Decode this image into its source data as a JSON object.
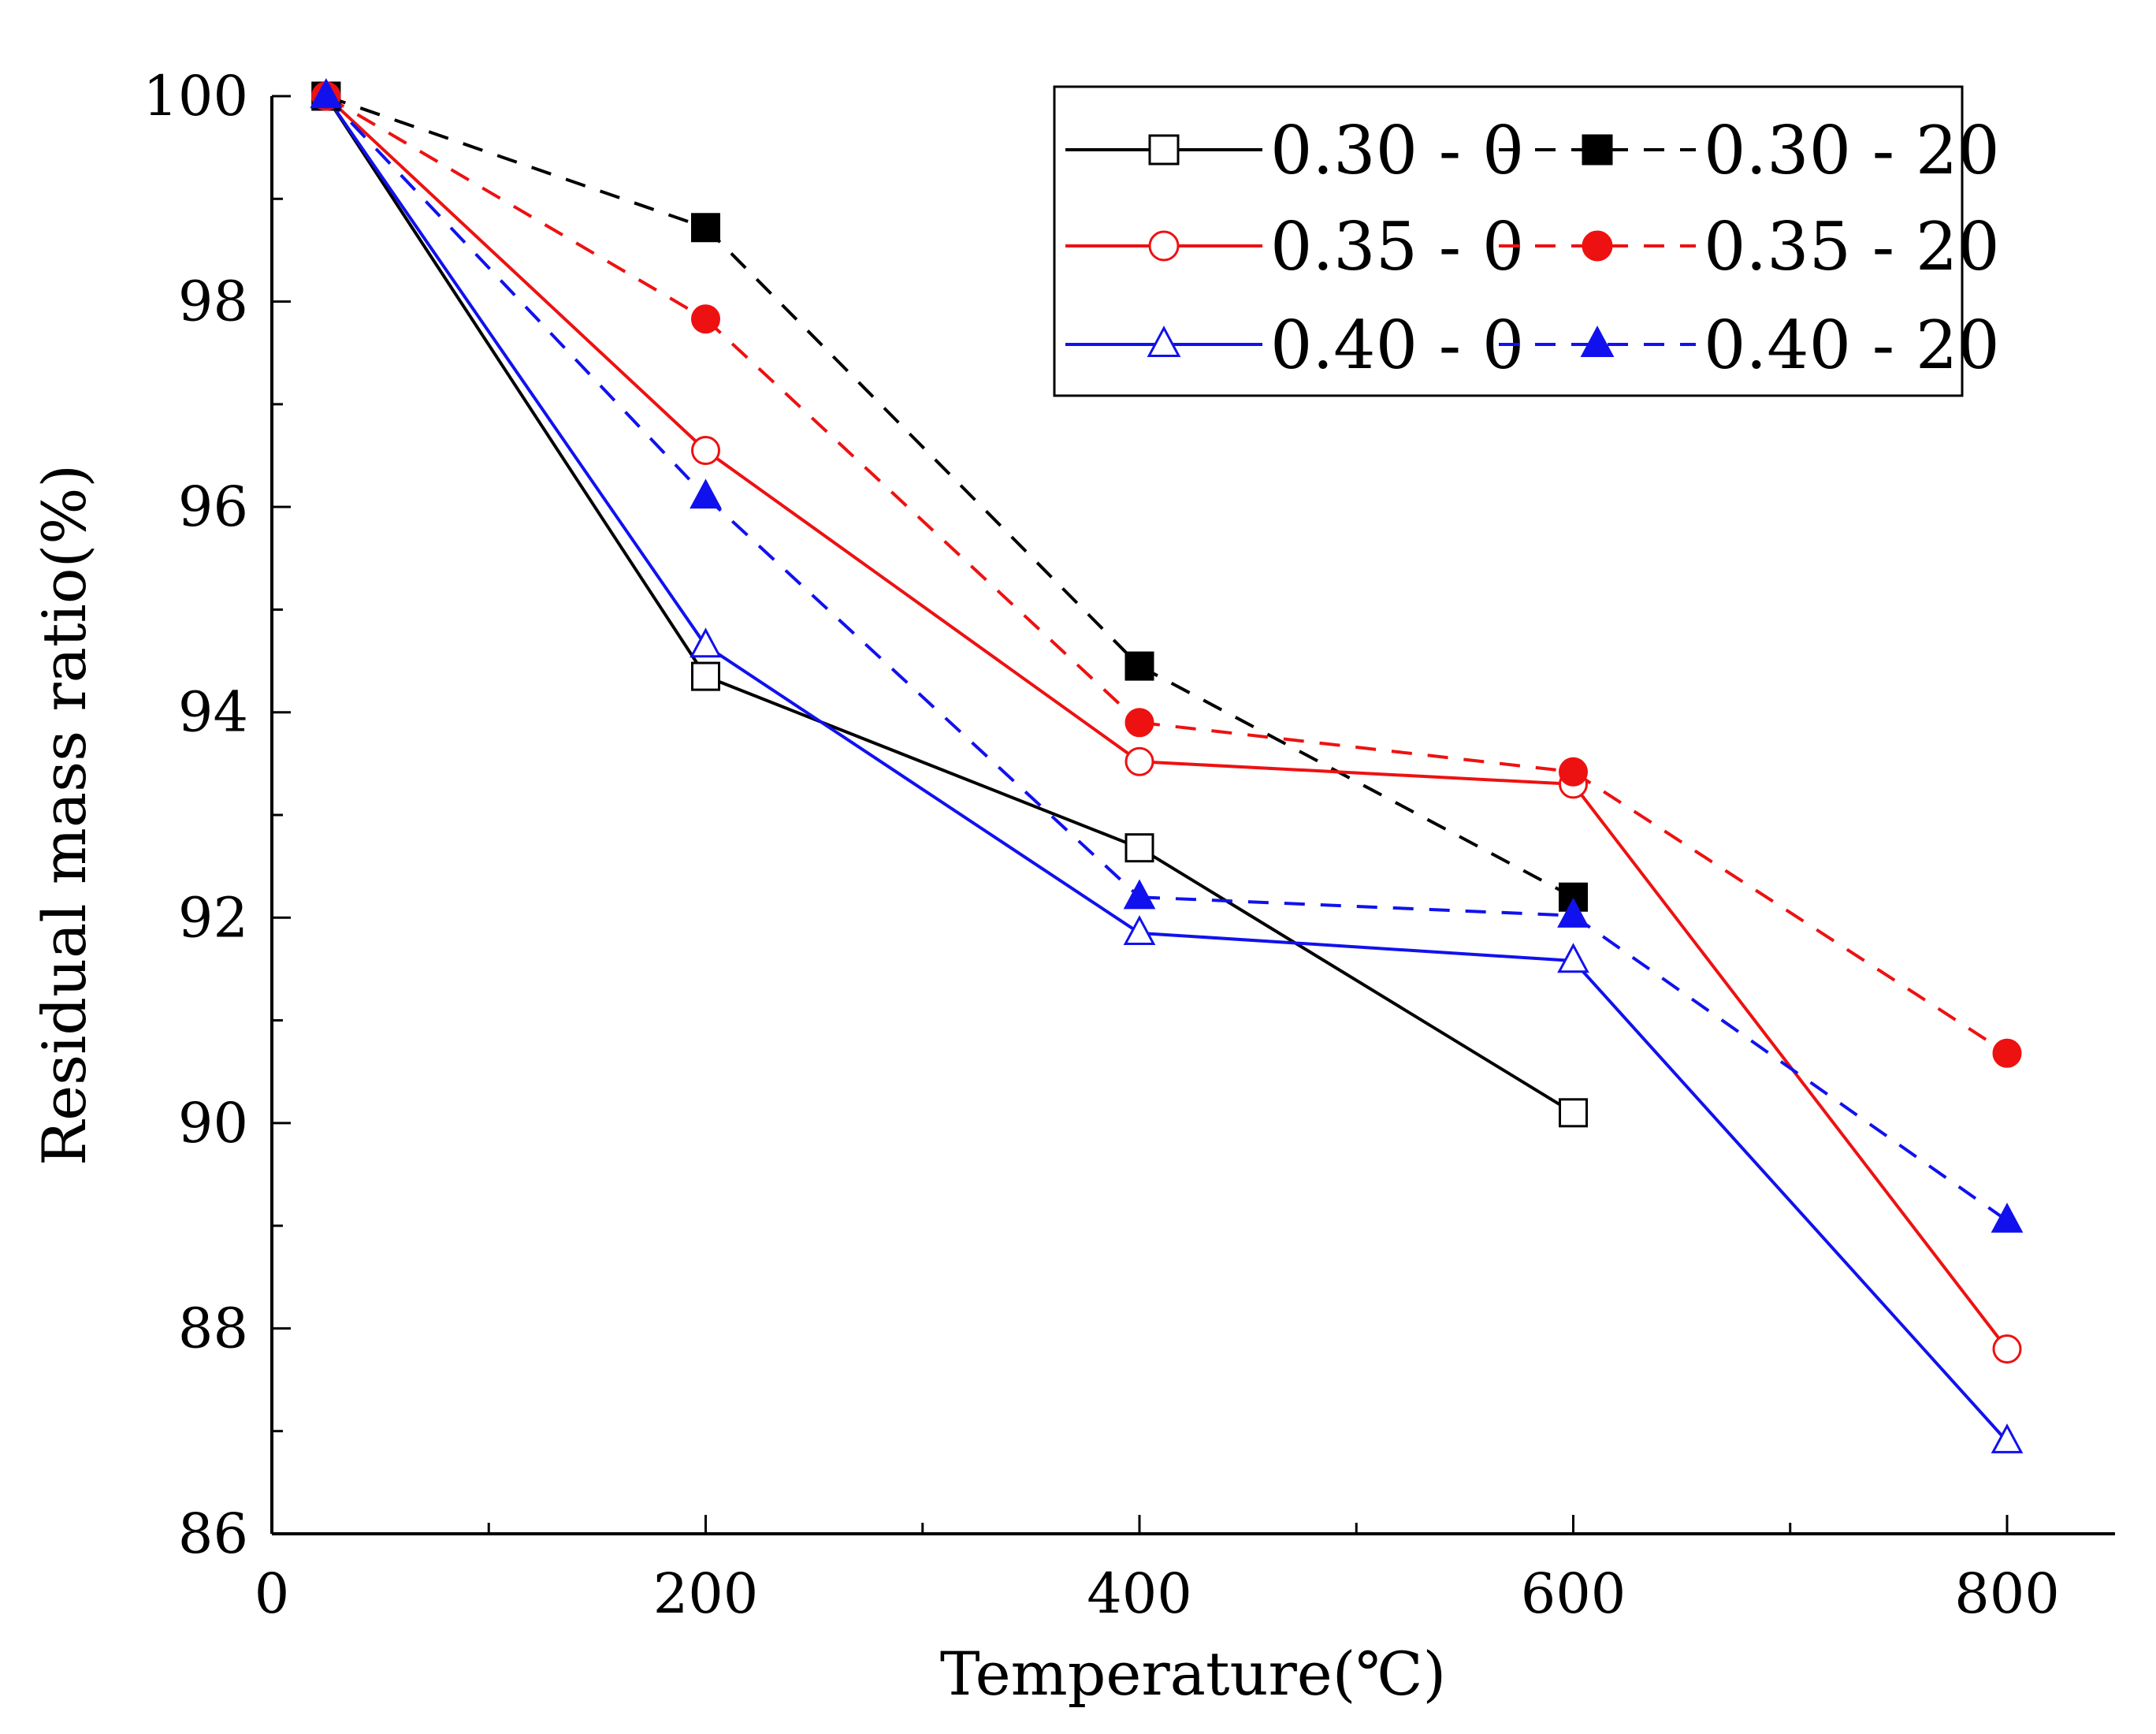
{
  "chart_data": {
    "type": "line",
    "xlabel": "Temperature(℃)",
    "ylabel": "Residual mass ratio(%)",
    "xlim": [
      0,
      850
    ],
    "ylim": [
      86,
      100
    ],
    "xticks": [
      0,
      200,
      400,
      600,
      800
    ],
    "yticks": [
      86,
      88,
      90,
      92,
      94,
      96,
      98,
      100
    ],
    "legend_position": "top-right",
    "series": [
      {
        "name": "0.30 - 0",
        "color": "#000000",
        "dash": false,
        "marker": "square",
        "filled": false,
        "x": [
          25,
          200,
          400,
          600
        ],
        "y": [
          100,
          94.35,
          92.68,
          90.1
        ]
      },
      {
        "name": "0.30 - 20",
        "color": "#000000",
        "dash": true,
        "marker": "square",
        "filled": true,
        "x": [
          25,
          200,
          400,
          600
        ],
        "y": [
          100,
          98.72,
          94.45,
          92.2
        ]
      },
      {
        "name": "0.35 - 0",
        "color": "#ee1111",
        "dash": false,
        "marker": "circle",
        "filled": false,
        "x": [
          25,
          200,
          400,
          600,
          800
        ],
        "y": [
          100,
          96.55,
          93.52,
          93.3,
          87.8
        ]
      },
      {
        "name": "0.35 - 20",
        "color": "#ee1111",
        "dash": true,
        "marker": "circle",
        "filled": true,
        "x": [
          25,
          200,
          400,
          600,
          800
        ],
        "y": [
          100,
          97.83,
          93.9,
          93.42,
          90.68
        ]
      },
      {
        "name": "0.40 - 0",
        "color": "#1111ee",
        "dash": false,
        "marker": "triangle",
        "filled": false,
        "x": [
          25,
          200,
          400,
          600,
          800
        ],
        "y": [
          100,
          94.65,
          91.85,
          91.58,
          86.9
        ]
      },
      {
        "name": "0.40 - 20",
        "color": "#1111ee",
        "dash": true,
        "marker": "triangle",
        "filled": true,
        "x": [
          25,
          200,
          400,
          600,
          800
        ],
        "y": [
          100,
          96.1,
          92.2,
          92.02,
          89.05
        ]
      }
    ]
  }
}
